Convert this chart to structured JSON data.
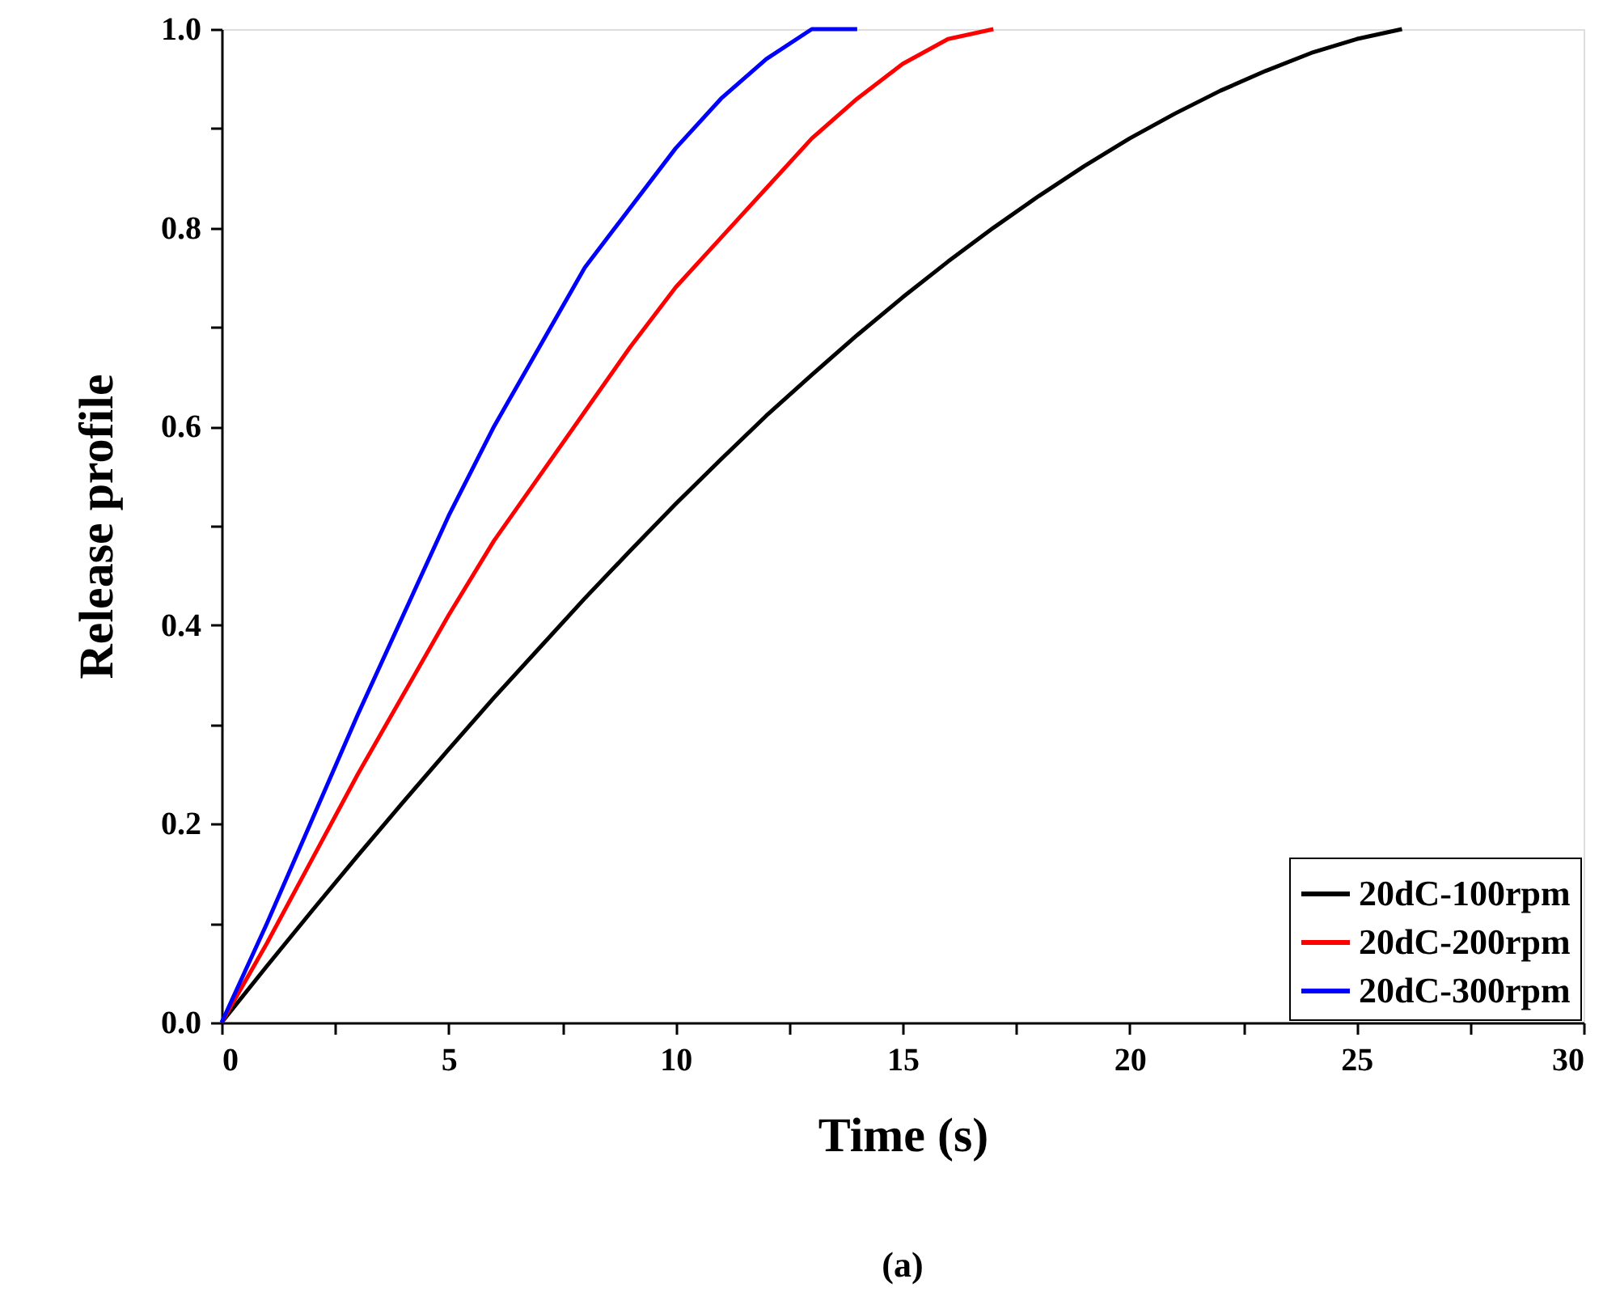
{
  "chart_data": {
    "type": "line",
    "xlabel": "Time (s)",
    "ylabel": "Release profile",
    "annotations": [
      "(a)"
    ],
    "xlim": [
      0,
      30
    ],
    "ylim": [
      0,
      1.0
    ],
    "xticks": [
      0,
      {
        "value": 2.5,
        "label": null
      },
      5,
      {
        "value": 7.5,
        "label": null
      },
      10,
      {
        "value": 12.5,
        "label": null
      },
      15,
      {
        "value": 17.5,
        "label": null
      },
      20,
      {
        "value": 22.5,
        "label": null
      },
      25,
      {
        "value": 27.5,
        "label": null
      },
      30
    ],
    "yticks": [
      {
        "value": 0,
        "label": "0.0"
      },
      {
        "value": 0.1,
        "label": null
      },
      0.2,
      {
        "value": 0.3,
        "label": null
      },
      0.4,
      {
        "value": 0.5,
        "label": null
      },
      0.6,
      {
        "value": 0.7,
        "label": null
      },
      0.8,
      {
        "value": 0.9,
        "label": null
      },
      {
        "value": 1.0,
        "label": "1.0"
      }
    ],
    "grid": false,
    "legend": "bottom right",
    "series": [
      {
        "name": "20dC-100rpm",
        "color": "#000000",
        "x": [
          0,
          1,
          2,
          3,
          4,
          5,
          6,
          7,
          8,
          9,
          10,
          11,
          12,
          13,
          14,
          15,
          16,
          17,
          18,
          19,
          20,
          21,
          22,
          23,
          24,
          25,
          26
        ],
        "values": [
          0,
          0.057,
          0.113,
          0.168,
          0.222,
          0.275,
          0.327,
          0.377,
          0.427,
          0.475,
          0.522,
          0.567,
          0.611,
          0.652,
          0.692,
          0.73,
          0.766,
          0.8,
          0.832,
          0.862,
          0.89,
          0.915,
          0.938,
          0.958,
          0.976,
          0.99,
          1.0
        ]
      },
      {
        "name": "20dC-200rpm",
        "color": "#ff0000",
        "x": [
          0,
          1,
          2,
          3,
          4,
          5,
          6,
          7,
          8,
          9,
          10,
          11,
          12,
          13,
          14,
          15,
          16,
          17
        ],
        "values": [
          0,
          0.08,
          0.165,
          0.25,
          0.33,
          0.41,
          0.485,
          0.55,
          0.615,
          0.68,
          0.74,
          0.79,
          0.84,
          0.89,
          0.93,
          0.965,
          0.99,
          1.0
        ]
      },
      {
        "name": "20dC-300rpm",
        "color": "#0000ff",
        "x": [
          0,
          1,
          2,
          3,
          4,
          5,
          6,
          7,
          8,
          9,
          10,
          11,
          12,
          13,
          14
        ],
        "values": [
          0,
          0.1,
          0.205,
          0.31,
          0.41,
          0.51,
          0.6,
          0.68,
          0.76,
          0.82,
          0.88,
          0.93,
          0.97,
          1.0,
          1.0
        ]
      }
    ]
  }
}
